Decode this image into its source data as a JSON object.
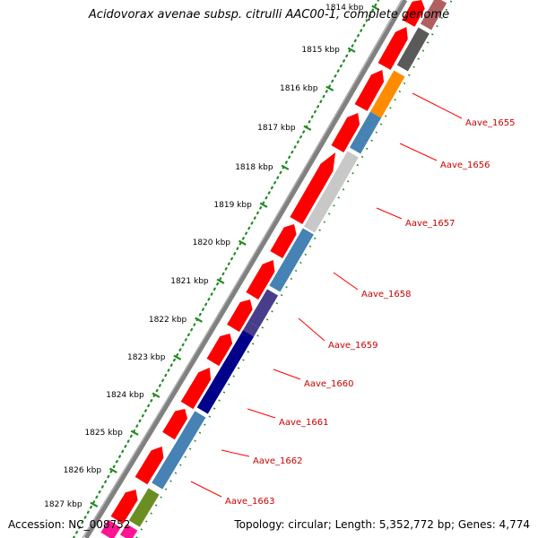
{
  "title": "Acidovorax avenae subsp. citrulli AAC00-1, complete genome",
  "footer": {
    "accession_label": "Accession:",
    "accession": "NC_008752",
    "topology_label": "Topology:",
    "topology": "circular",
    "length_label": "Length:",
    "length": "5,352,772 bp",
    "genes_label": "Genes:",
    "genes": "4,774"
  },
  "ruler": {
    "unit": "kbp",
    "ticks": [
      "1814 kbp",
      "1815 kbp",
      "1816 kbp",
      "1817 kbp",
      "1818 kbp",
      "1819 kbp",
      "1820 kbp",
      "1821 kbp",
      "1822 kbp",
      "1823 kbp",
      "1824 kbp",
      "1825 kbp",
      "1826 kbp",
      "1827 kbp"
    ],
    "color": "#228b22"
  },
  "genes": [
    {
      "label": "Aave_1655",
      "color": "#ff8c00"
    },
    {
      "label": "Aave_1656",
      "color": "#4682b4"
    },
    {
      "label": "Aave_1657",
      "color": "#c8c8c8"
    },
    {
      "label": "Aave_1658",
      "color": "#4682b4"
    },
    {
      "label": "Aave_1659",
      "color": "#483d8b"
    },
    {
      "label": "Aave_1660",
      "color": "#483d8b"
    },
    {
      "label": "Aave_1661",
      "color": "#00008b"
    },
    {
      "label": "Aave_1662",
      "color": "#4682b4"
    },
    {
      "label": "Aave_1663",
      "color": "#6b8e23"
    }
  ],
  "colors": {
    "cds": "#ff0000",
    "label_line": "#ff0000",
    "backbone": "#808080",
    "pink_feature": "#ff1493",
    "dark_feature": "#5a5a5a"
  }
}
